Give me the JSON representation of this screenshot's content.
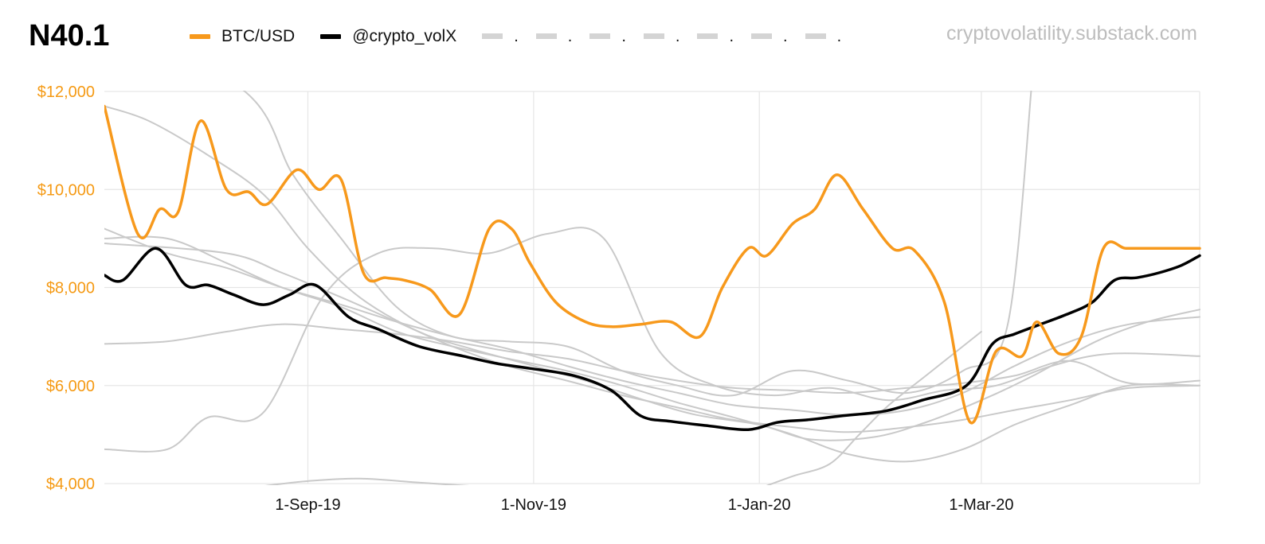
{
  "chart_data": {
    "type": "line",
    "title": "N40.1",
    "source": "cryptovolatility.substack.com",
    "ylim": [
      4000,
      12000
    ],
    "y_ticks": [
      4000,
      6000,
      8000,
      10000,
      12000
    ],
    "y_tick_labels": [
      "$4,000",
      "$6,000",
      "$8,000",
      "$10,000",
      "$12,000"
    ],
    "x_ticks": [
      {
        "x": "2019-09-01",
        "label": "1-Sep-19"
      },
      {
        "x": "2019-11-01",
        "label": "1-Nov-19"
      },
      {
        "x": "2020-01-01",
        "label": "1-Jan-20"
      },
      {
        "x": "2020-03-01",
        "label": "1-Mar-20"
      }
    ],
    "xlim": [
      "2019-07-08",
      "2020-04-29"
    ],
    "grid": true,
    "legend_placement": "top",
    "legend_extra_markers": [
      ".",
      ".",
      ".",
      ".",
      ".",
      ".",
      "."
    ],
    "series": [
      {
        "name": "BTC/USD",
        "color": "#f7991c",
        "width": 3.5,
        "x": [
          "2019-07-08",
          "2019-07-17",
          "2019-07-23",
          "2019-07-28",
          "2019-08-03",
          "2019-08-10",
          "2019-08-16",
          "2019-08-21",
          "2019-08-29",
          "2019-09-04",
          "2019-09-10",
          "2019-09-16",
          "2019-09-22",
          "2019-09-27",
          "2019-10-04",
          "2019-10-12",
          "2019-10-20",
          "2019-10-26",
          "2019-10-31",
          "2019-11-07",
          "2019-11-15",
          "2019-11-22",
          "2019-11-30",
          "2019-12-08",
          "2019-12-16",
          "2019-12-22",
          "2019-12-29",
          "2020-01-03",
          "2020-01-10",
          "2020-01-16",
          "2020-01-22",
          "2020-01-29",
          "2020-02-06",
          "2020-02-12",
          "2020-02-20",
          "2020-02-27",
          "2020-03-05",
          "2020-03-12",
          "2020-03-16",
          "2020-03-22",
          "2020-03-28",
          "2020-04-03",
          "2020-04-09",
          "2020-04-15",
          "2020-04-22",
          "2020-04-29"
        ],
        "y": [
          11700,
          9100,
          9600,
          9550,
          11400,
          10000,
          9950,
          9700,
          10400,
          10000,
          10200,
          8300,
          8200,
          8150,
          7960,
          7450,
          9200,
          9200,
          8500,
          7700,
          7300,
          7200,
          7250,
          7300,
          7000,
          8000,
          8800,
          8650,
          9300,
          9600,
          10300,
          9600,
          8800,
          8750,
          7700,
          5250,
          6700,
          6600,
          7300,
          6650,
          7000,
          8800,
          8800,
          8800,
          8800,
          8800
        ]
      },
      {
        "name": "@crypto_volX",
        "color": "#000000",
        "width": 3.5,
        "x": [
          "2019-07-08",
          "2019-07-13",
          "2019-07-22",
          "2019-07-30",
          "2019-08-05",
          "2019-08-12",
          "2019-08-20",
          "2019-08-27",
          "2019-09-03",
          "2019-09-12",
          "2019-09-20",
          "2019-10-01",
          "2019-10-13",
          "2019-10-22",
          "2019-10-31",
          "2019-11-12",
          "2019-11-22",
          "2019-11-30",
          "2019-12-08",
          "2019-12-18",
          "2019-12-29",
          "2020-01-06",
          "2020-01-14",
          "2020-01-23",
          "2020-02-04",
          "2020-02-14",
          "2020-02-26",
          "2020-03-04",
          "2020-03-10",
          "2020-03-17",
          "2020-03-24",
          "2020-03-31",
          "2020-04-06",
          "2020-04-12",
          "2020-04-18",
          "2020-04-24",
          "2020-04-29"
        ],
        "y": [
          8250,
          8150,
          8800,
          8050,
          8050,
          7850,
          7650,
          7850,
          8050,
          7400,
          7150,
          6800,
          6600,
          6450,
          6350,
          6200,
          5900,
          5380,
          5270,
          5180,
          5100,
          5250,
          5300,
          5380,
          5480,
          5700,
          6000,
          6850,
          7050,
          7250,
          7450,
          7700,
          8150,
          8200,
          8300,
          8450,
          8650
        ]
      },
      {
        "name": "",
        "color": "#c9c9c9",
        "width": 2,
        "x": [
          "2019-07-08",
          "2019-07-20",
          "2019-08-05",
          "2019-08-20",
          "2019-09-01",
          "2019-09-15",
          "2019-10-01",
          "2019-10-15",
          "2019-11-01",
          "2019-11-15",
          "2019-12-01",
          "2019-12-15",
          "2020-01-01",
          "2020-01-15",
          "2020-02-01",
          "2020-02-15",
          "2020-03-01",
          "2020-03-15",
          "2020-04-01",
          "2020-04-15",
          "2020-04-29"
        ],
        "y": [
          11700,
          11400,
          10700,
          9900,
          8800,
          7800,
          7100,
          6750,
          6400,
          6100,
          5700,
          5400,
          5200,
          4900,
          4950,
          5250,
          5700,
          6200,
          6900,
          7300,
          7550
        ]
      },
      {
        "name": "",
        "color": "#c9c9c9",
        "width": 2,
        "x": [
          "2019-07-08",
          "2019-07-25",
          "2019-08-05",
          "2019-08-20",
          "2019-09-05",
          "2019-09-20",
          "2019-10-05",
          "2019-10-20",
          "2019-11-05",
          "2019-11-20",
          "2019-12-05",
          "2019-12-20",
          "2020-01-05",
          "2020-01-20",
          "2020-02-05",
          "2020-02-20",
          "2020-03-05",
          "2020-03-20",
          "2020-04-05",
          "2020-04-29"
        ],
        "y": [
          4700,
          4700,
          5350,
          5450,
          7800,
          8700,
          8800,
          8700,
          9100,
          9000,
          6700,
          6000,
          5800,
          5950,
          5700,
          5900,
          6000,
          6400,
          6650,
          6600
        ]
      },
      {
        "name": "",
        "color": "#c9c9c9",
        "width": 2,
        "x": [
          "2019-07-08",
          "2019-07-25",
          "2019-08-10",
          "2019-08-25",
          "2019-09-10",
          "2019-09-25",
          "2019-10-10",
          "2019-10-25",
          "2019-11-10",
          "2019-11-25",
          "2019-12-10",
          "2019-12-25",
          "2020-01-10",
          "2020-01-25",
          "2020-02-10",
          "2020-02-25",
          "2020-03-10",
          "2020-03-25",
          "2020-04-10",
          "2020-04-29"
        ],
        "y": [
          6850,
          6900,
          7100,
          7250,
          7150,
          7050,
          6900,
          6700,
          6550,
          6300,
          6100,
          5950,
          5900,
          5850,
          5950,
          6050,
          6200,
          6500,
          6050,
          6100
        ]
      },
      {
        "name": "",
        "color": "#c9c9c9",
        "width": 2,
        "x": [
          "2019-07-08",
          "2019-07-25",
          "2019-08-10",
          "2019-08-25",
          "2019-09-10",
          "2019-09-25",
          "2019-10-10",
          "2019-10-25",
          "2019-11-10",
          "2019-11-25",
          "2019-12-10",
          "2019-12-25",
          "2020-01-10",
          "2020-01-25",
          "2020-02-10",
          "2020-02-25",
          "2020-03-10",
          "2020-03-25",
          "2020-04-10",
          "2020-04-29"
        ],
        "y": [
          9000,
          9000,
          8500,
          8000,
          7600,
          7100,
          6800,
          6550,
          6300,
          6000,
          5650,
          5350,
          5000,
          4600,
          4450,
          4700,
          5200,
          5600,
          6000,
          6000
        ]
      },
      {
        "name": "",
        "color": "#c9c9c9",
        "width": 2,
        "x": [
          "2019-07-08",
          "2019-07-25",
          "2019-08-10",
          "2019-08-25",
          "2019-09-10",
          "2019-09-25",
          "2019-10-10",
          "2019-10-25",
          "2019-11-10",
          "2019-11-25",
          "2019-12-10",
          "2019-12-25",
          "2020-01-10",
          "2020-01-25",
          "2020-02-10",
          "2020-02-25",
          "2020-03-10",
          "2020-03-25",
          "2020-04-10",
          "2020-04-29"
        ],
        "y": [
          9200,
          8700,
          8400,
          8000,
          7650,
          7300,
          7000,
          6750,
          6400,
          6100,
          5850,
          5600,
          5500,
          5400,
          5500,
          5850,
          6400,
          6900,
          7250,
          7400
        ]
      },
      {
        "name": "",
        "color": "#c9c9c9",
        "width": 2,
        "x": [
          "2019-07-08",
          "2019-08-10",
          "2019-08-25",
          "2019-09-10",
          "2019-09-25",
          "2019-10-10",
          "2019-10-25",
          "2019-11-10",
          "2019-11-25",
          "2019-12-10",
          "2019-12-25",
          "2020-01-10",
          "2020-01-25",
          "2020-02-10",
          "2020-02-25",
          "2020-03-10",
          "2020-03-25",
          "2020-04-10",
          "2020-04-29"
        ],
        "y": [
          8900,
          8700,
          8300,
          7800,
          7300,
          6800,
          6400,
          6100,
          5800,
          5550,
          5300,
          5150,
          5050,
          5150,
          5300,
          5500,
          5700,
          5950,
          6000
        ]
      },
      {
        "name": "",
        "color": "#c9c9c9",
        "width": 2,
        "x": [
          "2019-07-08",
          "2019-08-15",
          "2019-08-28",
          "2019-09-10",
          "2019-09-25",
          "2019-10-10",
          "2019-10-25",
          "2019-11-10",
          "2019-11-25",
          "2019-12-10",
          "2019-12-25",
          "2020-01-10",
          "2020-01-25",
          "2020-02-10",
          "2020-02-25",
          "2020-03-08",
          "2020-03-15"
        ],
        "y": [
          13500,
          12000,
          10300,
          9000,
          7600,
          7000,
          6900,
          6800,
          6300,
          6000,
          5800,
          6300,
          6100,
          5850,
          6300,
          7200,
          12500
        ]
      },
      {
        "name": "",
        "color": "#c9c9c9",
        "width": 2,
        "x": [
          "2019-08-20",
          "2019-09-01",
          "2019-09-15",
          "2019-10-01",
          "2019-10-15"
        ],
        "y": [
          3950,
          4050,
          4100,
          4020,
          3950
        ]
      },
      {
        "name": "",
        "color": "#c9c9c9",
        "width": 2,
        "x": [
          "2020-01-01",
          "2020-01-10",
          "2020-01-20",
          "2020-01-28",
          "2020-02-05",
          "2020-02-15",
          "2020-02-25",
          "2020-03-01"
        ],
        "y": [
          3900,
          4150,
          4400,
          5000,
          5600,
          6200,
          6800,
          7100
        ]
      }
    ]
  },
  "legend_items": [
    {
      "label": "BTC/USD",
      "color": "#f7991c"
    },
    {
      "label": "@crypto_volX",
      "color": "#000000"
    }
  ]
}
